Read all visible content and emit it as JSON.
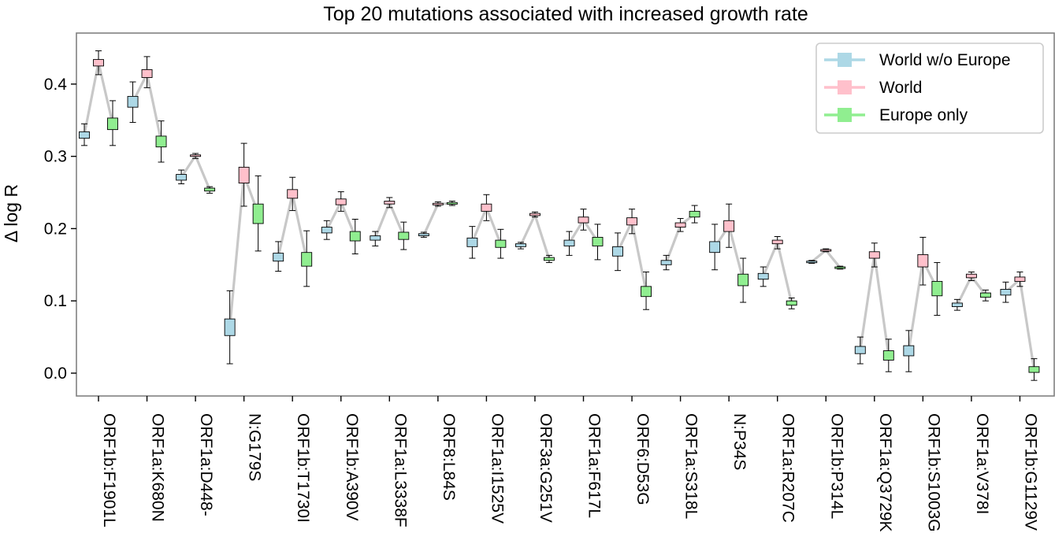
{
  "chart_data": {
    "type": "box",
    "title": "Top 20 mutations associated with increased growth rate",
    "xlabel": "",
    "ylabel": "Δ log R",
    "ylim": [
      -0.03,
      0.47
    ],
    "yticks": [
      "0.0",
      "0.1",
      "0.2",
      "0.3",
      "0.4"
    ],
    "grid": false,
    "legend_position": "top-right",
    "categories": [
      "ORF1b:F1901L",
      "ORF1a:K680N",
      "ORF1a:D448-",
      "N:G179S",
      "ORF1b:T1730I",
      "ORF1b:A390V",
      "ORF1a:L3338F",
      "ORF8:L84S",
      "ORF1a:I1525V",
      "ORF3a:G251V",
      "ORF1a:F617L",
      "ORF6:D53G",
      "ORF1a:S318L",
      "N:P34S",
      "ORF1a:R207C",
      "ORF1b:P314L",
      "ORF1a:Q3729K",
      "ORF1b:S1003G",
      "ORF1a:V378I",
      "ORF1b:G1129V"
    ],
    "series": [
      {
        "name": "World w/o Europe",
        "color": "#add8e6",
        "boxes": [
          {
            "median": 0.33,
            "q1": 0.325,
            "q3": 0.334,
            "low": 0.315,
            "high": 0.345
          },
          {
            "median": 0.375,
            "q1": 0.368,
            "q3": 0.383,
            "low": 0.347,
            "high": 0.403
          },
          {
            "median": 0.271,
            "q1": 0.267,
            "q3": 0.275,
            "low": 0.262,
            "high": 0.281
          },
          {
            "median": 0.063,
            "q1": 0.052,
            "q3": 0.075,
            "low": 0.013,
            "high": 0.114
          },
          {
            "median": 0.161,
            "q1": 0.155,
            "q3": 0.166,
            "low": 0.141,
            "high": 0.182
          },
          {
            "median": 0.198,
            "q1": 0.194,
            "q3": 0.202,
            "low": 0.185,
            "high": 0.211
          },
          {
            "median": 0.187,
            "q1": 0.184,
            "q3": 0.19,
            "low": 0.176,
            "high": 0.196
          },
          {
            "median": 0.191,
            "q1": 0.19,
            "q3": 0.193,
            "low": 0.188,
            "high": 0.195
          },
          {
            "median": 0.181,
            "q1": 0.175,
            "q3": 0.187,
            "low": 0.159,
            "high": 0.203
          },
          {
            "median": 0.177,
            "q1": 0.175,
            "q3": 0.179,
            "low": 0.172,
            "high": 0.181
          },
          {
            "median": 0.18,
            "q1": 0.176,
            "q3": 0.184,
            "low": 0.163,
            "high": 0.196
          },
          {
            "median": 0.168,
            "q1": 0.162,
            "q3": 0.175,
            "low": 0.142,
            "high": 0.194
          },
          {
            "median": 0.153,
            "q1": 0.15,
            "q3": 0.156,
            "low": 0.143,
            "high": 0.163
          },
          {
            "median": 0.174,
            "q1": 0.167,
            "q3": 0.182,
            "low": 0.143,
            "high": 0.206
          },
          {
            "median": 0.134,
            "q1": 0.13,
            "q3": 0.138,
            "low": 0.12,
            "high": 0.147
          },
          {
            "median": 0.154,
            "q1": 0.153,
            "q3": 0.155,
            "low": 0.152,
            "high": 0.156
          },
          {
            "median": 0.032,
            "q1": 0.027,
            "q3": 0.037,
            "low": 0.013,
            "high": 0.05
          },
          {
            "median": 0.031,
            "q1": 0.024,
            "q3": 0.038,
            "low": 0.002,
            "high": 0.059
          },
          {
            "median": 0.094,
            "q1": 0.092,
            "q3": 0.097,
            "low": 0.087,
            "high": 0.102
          },
          {
            "median": 0.112,
            "q1": 0.108,
            "q3": 0.116,
            "low": 0.098,
            "high": 0.126
          }
        ]
      },
      {
        "name": "World",
        "color": "#ffc0cb",
        "boxes": [
          {
            "median": 0.43,
            "q1": 0.425,
            "q3": 0.434,
            "low": 0.413,
            "high": 0.446
          },
          {
            "median": 0.414,
            "q1": 0.409,
            "q3": 0.42,
            "low": 0.395,
            "high": 0.438
          },
          {
            "median": 0.301,
            "q1": 0.3,
            "q3": 0.302,
            "low": 0.297,
            "high": 0.304
          },
          {
            "median": 0.274,
            "q1": 0.263,
            "q3": 0.285,
            "low": 0.231,
            "high": 0.318
          },
          {
            "median": 0.248,
            "q1": 0.242,
            "q3": 0.254,
            "low": 0.225,
            "high": 0.271
          },
          {
            "median": 0.237,
            "q1": 0.233,
            "q3": 0.241,
            "low": 0.224,
            "high": 0.251
          },
          {
            "median": 0.236,
            "q1": 0.234,
            "q3": 0.238,
            "low": 0.229,
            "high": 0.243
          },
          {
            "median": 0.234,
            "q1": 0.233,
            "q3": 0.235,
            "low": 0.231,
            "high": 0.237
          },
          {
            "median": 0.229,
            "q1": 0.224,
            "q3": 0.234,
            "low": 0.211,
            "high": 0.247
          },
          {
            "median": 0.219,
            "q1": 0.218,
            "q3": 0.221,
            "low": 0.216,
            "high": 0.223
          },
          {
            "median": 0.212,
            "q1": 0.208,
            "q3": 0.216,
            "low": 0.198,
            "high": 0.227
          },
          {
            "median": 0.21,
            "q1": 0.205,
            "q3": 0.215,
            "low": 0.193,
            "high": 0.227
          },
          {
            "median": 0.205,
            "q1": 0.202,
            "q3": 0.208,
            "low": 0.196,
            "high": 0.214
          },
          {
            "median": 0.204,
            "q1": 0.196,
            "q3": 0.211,
            "low": 0.174,
            "high": 0.234
          },
          {
            "median": 0.181,
            "q1": 0.179,
            "q3": 0.184,
            "low": 0.172,
            "high": 0.189
          },
          {
            "median": 0.17,
            "q1": 0.169,
            "q3": 0.171,
            "low": 0.168,
            "high": 0.172
          },
          {
            "median": 0.164,
            "q1": 0.159,
            "q3": 0.168,
            "low": 0.147,
            "high": 0.18
          },
          {
            "median": 0.156,
            "q1": 0.147,
            "q3": 0.164,
            "low": 0.122,
            "high": 0.188
          },
          {
            "median": 0.134,
            "q1": 0.132,
            "q3": 0.137,
            "low": 0.128,
            "high": 0.14
          },
          {
            "median": 0.13,
            "q1": 0.127,
            "q3": 0.133,
            "low": 0.12,
            "high": 0.14
          }
        ]
      },
      {
        "name": "Europe only",
        "color": "#90ee90",
        "boxes": [
          {
            "median": 0.345,
            "q1": 0.337,
            "q3": 0.353,
            "low": 0.315,
            "high": 0.377
          },
          {
            "median": 0.321,
            "q1": 0.313,
            "q3": 0.328,
            "low": 0.292,
            "high": 0.349
          },
          {
            "median": 0.254,
            "q1": 0.252,
            "q3": 0.256,
            "low": 0.249,
            "high": 0.258
          },
          {
            "median": 0.221,
            "q1": 0.207,
            "q3": 0.234,
            "low": 0.169,
            "high": 0.273
          },
          {
            "median": 0.157,
            "q1": 0.148,
            "q3": 0.167,
            "low": 0.12,
            "high": 0.197
          },
          {
            "median": 0.189,
            "q1": 0.183,
            "q3": 0.196,
            "low": 0.165,
            "high": 0.213
          },
          {
            "median": 0.19,
            "q1": 0.185,
            "q3": 0.195,
            "low": 0.171,
            "high": 0.209
          },
          {
            "median": 0.235,
            "q1": 0.234,
            "q3": 0.236,
            "low": 0.232,
            "high": 0.238
          },
          {
            "median": 0.179,
            "q1": 0.174,
            "q3": 0.184,
            "low": 0.159,
            "high": 0.199
          },
          {
            "median": 0.158,
            "q1": 0.156,
            "q3": 0.16,
            "low": 0.153,
            "high": 0.163
          },
          {
            "median": 0.182,
            "q1": 0.176,
            "q3": 0.188,
            "low": 0.157,
            "high": 0.206
          },
          {
            "median": 0.113,
            "q1": 0.106,
            "q3": 0.12,
            "low": 0.088,
            "high": 0.14
          },
          {
            "median": 0.22,
            "q1": 0.216,
            "q3": 0.224,
            "low": 0.208,
            "high": 0.232
          },
          {
            "median": 0.129,
            "q1": 0.121,
            "q3": 0.137,
            "low": 0.098,
            "high": 0.159
          },
          {
            "median": 0.097,
            "q1": 0.094,
            "q3": 0.1,
            "low": 0.089,
            "high": 0.104
          },
          {
            "median": 0.146,
            "q1": 0.145,
            "q3": 0.147,
            "low": 0.144,
            "high": 0.148
          },
          {
            "median": 0.024,
            "q1": 0.018,
            "q3": 0.031,
            "low": 0.002,
            "high": 0.047
          },
          {
            "median": 0.117,
            "q1": 0.107,
            "q3": 0.127,
            "low": 0.08,
            "high": 0.153
          },
          {
            "median": 0.108,
            "q1": 0.105,
            "q3": 0.111,
            "low": 0.1,
            "high": 0.115
          },
          {
            "median": 0.005,
            "q1": 0.001,
            "q3": 0.009,
            "low": -0.01,
            "high": 0.02
          }
        ]
      }
    ]
  }
}
